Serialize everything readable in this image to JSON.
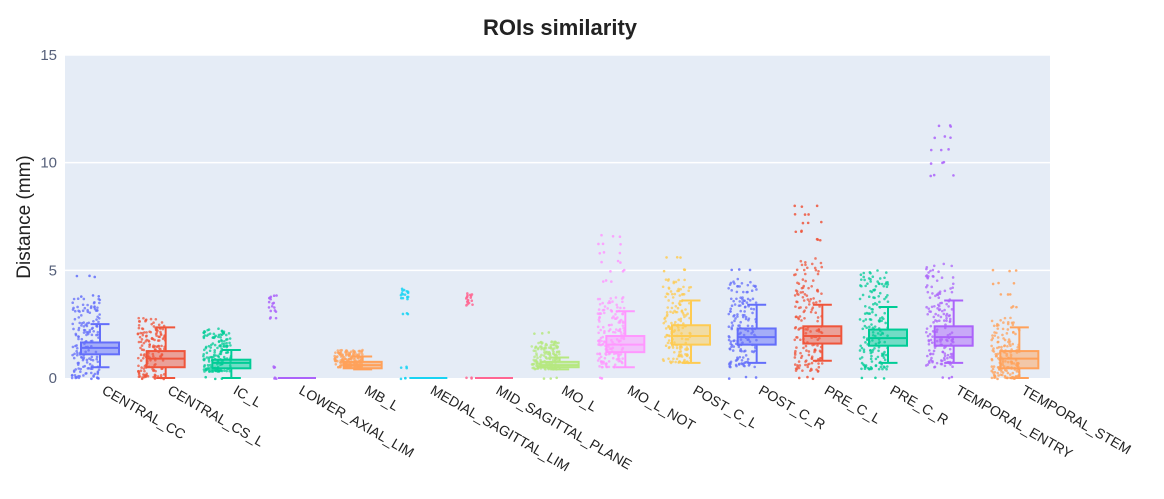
{
  "chart_data": {
    "type": "box",
    "title": "ROIs similarity",
    "xlabel": "",
    "ylabel": "Distance (mm)",
    "ylim": [
      0,
      15
    ],
    "yticks": [
      0,
      5,
      10,
      15
    ],
    "grid": true,
    "legend": "none",
    "plot_background": "#e5ecf6",
    "categories": [
      "CENTRAL_CC",
      "CENTRAL_CS_L",
      "IC_L",
      "LOWER_AXIAL_LIM",
      "MB_L",
      "MEDIAL_SAGITTAL_LIM",
      "MID_SAGITTAL_PLANE",
      "MO_L",
      "MO_L_NOT",
      "POST_C_L",
      "POST_C_R",
      "PRE_C_L",
      "PRE_C_R",
      "TEMPORAL_ENTRY",
      "TEMPORAL_STEM"
    ],
    "series": [
      {
        "category": "CENTRAL_CC",
        "color": "#636efa",
        "min": 0.5,
        "q1": 1.1,
        "median": 1.4,
        "q3": 1.65,
        "max": 2.5,
        "points": {
          "low": 0,
          "high": 3.7,
          "outliers": [
            0.0,
            4.7,
            3.8
          ]
        }
      },
      {
        "category": "CENTRAL_CS_L",
        "color": "#ef553b",
        "min": 0.0,
        "q1": 0.5,
        "median": 0.9,
        "q3": 1.25,
        "max": 2.35,
        "points": {
          "low": 0,
          "high": 2.8,
          "outliers": [
            0.0
          ]
        }
      },
      {
        "category": "IC_L",
        "color": "#00cc96",
        "min": 0.0,
        "q1": 0.45,
        "median": 0.7,
        "q3": 0.85,
        "max": 1.3,
        "points": {
          "low": 0.3,
          "high": 2.3,
          "outliers": [
            0.0
          ]
        }
      },
      {
        "category": "LOWER_AXIAL_LIM",
        "color": "#ab63fa",
        "min": 0.0,
        "q1": 0.0,
        "median": 0.0,
        "q3": 0.0,
        "max": 0.0,
        "points": {
          "low": null,
          "high": null,
          "outliers": [
            0.0,
            0.5,
            2.8,
            3.1,
            3.3,
            3.5,
            3.7,
            3.8
          ]
        }
      },
      {
        "category": "MB_L",
        "color": "#ffa15a",
        "min": 0.4,
        "q1": 0.45,
        "median": 0.6,
        "q3": 0.75,
        "max": 1.0,
        "points": {
          "low": 0.5,
          "high": 1.3,
          "outliers": []
        }
      },
      {
        "category": "MEDIAL_SAGITTAL_LIM",
        "color": "#19d3f3",
        "min": 0.0,
        "q1": 0.0,
        "median": 0.0,
        "q3": 0.0,
        "max": 0.0,
        "points": {
          "low": null,
          "high": null,
          "outliers": [
            0.0,
            0.5,
            3.0,
            3.7,
            3.8,
            3.9,
            4.0,
            4.1
          ]
        }
      },
      {
        "category": "MID_SAGITTAL_PLANE",
        "color": "#ff6692",
        "min": 0.0,
        "q1": 0.0,
        "median": 0.0,
        "q3": 0.0,
        "max": 0.0,
        "points": {
          "low": null,
          "high": null,
          "outliers": [
            0.0,
            3.4,
            3.5,
            3.6,
            3.7,
            3.8,
            3.9
          ]
        }
      },
      {
        "category": "MO_L",
        "color": "#b6e880",
        "min": 0.4,
        "q1": 0.5,
        "median": 0.6,
        "q3": 0.75,
        "max": 0.95,
        "points": {
          "low": 0.4,
          "high": 1.7,
          "outliers": [
            0.0,
            2.1
          ]
        }
      },
      {
        "category": "MO_L_NOT",
        "color": "#ff97ff",
        "min": 0.5,
        "q1": 1.2,
        "median": 1.55,
        "q3": 1.95,
        "max": 3.1,
        "points": {
          "low": 0.5,
          "high": 3.8,
          "outliers": [
            0.0,
            4.5,
            5.0,
            5.4,
            5.8,
            6.2,
            6.6
          ]
        }
      },
      {
        "category": "POST_C_L",
        "color": "#fecb52",
        "min": 0.7,
        "q1": 1.55,
        "median": 1.95,
        "q3": 2.45,
        "max": 3.6,
        "points": {
          "low": 0.7,
          "high": 4.6,
          "outliers": [
            5.0,
            5.6
          ]
        }
      },
      {
        "category": "POST_C_R",
        "color": "#636efa",
        "min": 0.7,
        "q1": 1.55,
        "median": 1.9,
        "q3": 2.3,
        "max": 3.4,
        "points": {
          "low": 0.5,
          "high": 4.6,
          "outliers": [
            0.0,
            5.0
          ]
        }
      },
      {
        "category": "PRE_C_L",
        "color": "#ef553b",
        "min": 0.8,
        "q1": 1.6,
        "median": 1.95,
        "q3": 2.4,
        "max": 3.4,
        "points": {
          "low": 0.3,
          "high": 5.6,
          "outliers": [
            0.0,
            6.4,
            6.8,
            7.2,
            7.6,
            8.0
          ]
        }
      },
      {
        "category": "PRE_C_R",
        "color": "#00cc96",
        "min": 0.7,
        "q1": 1.5,
        "median": 1.85,
        "q3": 2.25,
        "max": 3.3,
        "points": {
          "low": 0.4,
          "high": 5.0,
          "outliers": [
            0.0
          ]
        }
      },
      {
        "category": "TEMPORAL_ENTRY",
        "color": "#ab63fa",
        "min": 0.7,
        "q1": 1.5,
        "median": 1.9,
        "q3": 2.4,
        "max": 3.6,
        "points": {
          "low": 0.5,
          "high": 5.3,
          "outliers": [
            0.0,
            9.4,
            10.0,
            10.6,
            11.2,
            11.7
          ]
        }
      },
      {
        "category": "TEMPORAL_STEM",
        "color": "#ffa15a",
        "min": 0.0,
        "q1": 0.45,
        "median": 0.9,
        "q3": 1.25,
        "max": 2.35,
        "points": {
          "low": 0,
          "high": 2.8,
          "outliers": [
            0.0,
            3.3,
            3.9,
            4.4,
            5.0
          ]
        }
      }
    ]
  }
}
